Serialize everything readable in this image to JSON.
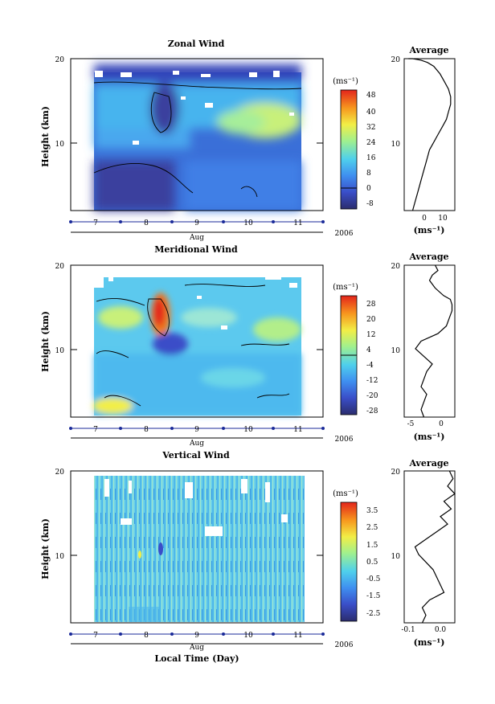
{
  "chart_data": [
    {
      "type": "heatmap",
      "title": "Zonal Wind",
      "ylabel": "Height (km)",
      "ylim": [
        0,
        20
      ],
      "yticks": [
        "10",
        "20"
      ],
      "xticks": [
        "7",
        "8",
        "9",
        "10",
        "11"
      ],
      "xlabel": "Aug",
      "year": "2006",
      "colorbar": {
        "unit": "(ms⁻¹)",
        "ticks": [
          "48",
          "40",
          "32",
          "24",
          "16",
          "8",
          "0",
          "-8"
        ],
        "range": [
          -8,
          48
        ]
      }
    },
    {
      "type": "line",
      "title": "Average",
      "ylim": [
        0,
        20
      ],
      "yticks": [
        "10",
        "20"
      ],
      "xticks": [
        "0",
        "10"
      ],
      "xlim": [
        -8,
        16
      ],
      "xunit": "(ms⁻¹)",
      "x": [
        -4,
        -3,
        -2,
        -1,
        0,
        1,
        2,
        3,
        4,
        6,
        8,
        10,
        12,
        13,
        14,
        14,
        13,
        11,
        9,
        6,
        3,
        0,
        -2,
        -4,
        -6
      ],
      "y": [
        0,
        1,
        2,
        3,
        4,
        5,
        6,
        7,
        8,
        9,
        10,
        11,
        12,
        13,
        14,
        15,
        16,
        17,
        18,
        19,
        19.5,
        19.8,
        19.9,
        20,
        20
      ]
    },
    {
      "type": "heatmap",
      "title": "Meridional Wind",
      "ylabel": "Height (km)",
      "ylim": [
        0,
        20
      ],
      "yticks": [
        "10",
        "20"
      ],
      "xticks": [
        "7",
        "8",
        "9",
        "10",
        "11"
      ],
      "xlabel": "Aug",
      "year": "2006",
      "colorbar": {
        "unit": "(ms⁻¹)",
        "ticks": [
          "28",
          "20",
          "12",
          "4",
          "-4",
          "-12",
          "-20",
          "-28"
        ],
        "range": [
          -28,
          28
        ]
      }
    },
    {
      "type": "line",
      "title": "Average",
      "ylim": [
        0,
        20
      ],
      "yticks": [
        "10",
        "20"
      ],
      "xticks": [
        "-5",
        "0"
      ],
      "xlim": [
        -7,
        2
      ],
      "xunit": "(ms⁻¹)",
      "x": [
        -3.5,
        -4,
        -3.5,
        -3,
        -4,
        -3.5,
        -3,
        -2,
        -3.5,
        -5,
        -4,
        -1,
        0.5,
        1,
        1.5,
        1.5,
        1.2,
        0,
        -1.5,
        -2.5,
        -2,
        -1,
        -1.5
      ],
      "y": [
        0,
        1,
        2,
        3,
        4,
        5,
        6,
        7,
        8,
        9,
        10,
        11,
        12,
        13,
        14,
        14.8,
        15.5,
        16,
        17,
        18,
        18.7,
        19.3,
        20
      ]
    },
    {
      "type": "heatmap",
      "title": "Vertical Wind",
      "ylabel": "Height (km)",
      "ylim": [
        0,
        20
      ],
      "yticks": [
        "10",
        "20"
      ],
      "xticks": [
        "7",
        "8",
        "9",
        "10",
        "11"
      ],
      "xlabel": "Aug",
      "year": "2006",
      "footer_label": "Local Time (Day)",
      "colorbar": {
        "unit": "(ms⁻¹)",
        "ticks": [
          "3.5",
          "2.5",
          "1.5",
          "0.5",
          "-0.5",
          "-1.5",
          "-2.5"
        ],
        "range": [
          -3,
          4
        ]
      }
    },
    {
      "type": "line",
      "title": "Average",
      "ylim": [
        0,
        20
      ],
      "yticks": [
        "10",
        "20"
      ],
      "xticks": [
        "-0.1",
        "0.0"
      ],
      "xlim": [
        -0.12,
        0.02
      ],
      "xunit": "(ms⁻¹)",
      "x": [
        -0.07,
        -0.06,
        -0.07,
        -0.05,
        -0.01,
        -0.02,
        -0.03,
        -0.04,
        -0.06,
        -0.08,
        -0.09,
        -0.06,
        -0.03,
        0.0,
        -0.02,
        0.01,
        -0.01,
        0.02,
        0.0,
        0.015,
        0.005
      ],
      "y": [
        0,
        1,
        2,
        3,
        4,
        5,
        6,
        7,
        8,
        9,
        10,
        11,
        12,
        13,
        14,
        15,
        16,
        17,
        18,
        19,
        20
      ]
    }
  ]
}
